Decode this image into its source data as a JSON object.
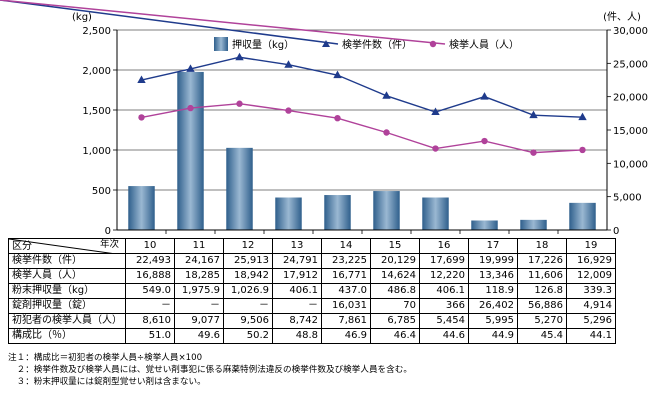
{
  "chart_data": {
    "type": "bar+line",
    "left_unit": "(kg)",
    "right_unit": "(件、人)",
    "left_ticks": [
      "0",
      "500",
      "1,000",
      "1,500",
      "2,000",
      "2,500"
    ],
    "right_ticks": [
      "0",
      "5,000",
      "10,000",
      "15,000",
      "20,000",
      "25,000",
      "30,000"
    ],
    "ylim_left": [
      0,
      2500
    ],
    "ylim_right": [
      0,
      30000
    ],
    "categories": [
      "10",
      "11",
      "12",
      "13",
      "14",
      "15",
      "16",
      "17",
      "18",
      "19"
    ],
    "bar_series": {
      "name": "押収量（kg）",
      "color": "#4f7fa8",
      "values": [
        549.0,
        1975.9,
        1026.9,
        406.1,
        437.0,
        486.8,
        406.1,
        118.9,
        126.8,
        339.3
      ]
    },
    "line_series": [
      {
        "name": "検挙件数（件）",
        "color": "#1f3b8c",
        "marker": "triangle",
        "values": [
          22493,
          24167,
          25913,
          24791,
          23225,
          20129,
          17699,
          19999,
          17226,
          16929
        ]
      },
      {
        "name": "検挙人員（人）",
        "color": "#b0429a",
        "marker": "circle",
        "values": [
          16888,
          18285,
          18942,
          17912,
          16771,
          14624,
          12220,
          13346,
          11606,
          12009
        ]
      }
    ],
    "legend": "top"
  },
  "table": {
    "corner_a": "区分",
    "corner_b": "年次",
    "rows": [
      {
        "label": "検挙件数（件）",
        "values": [
          "22,493",
          "24,167",
          "25,913",
          "24,791",
          "23,225",
          "20,129",
          "17,699",
          "19,999",
          "17,226",
          "16,929"
        ]
      },
      {
        "label": "検挙人員（人）",
        "values": [
          "16,888",
          "18,285",
          "18,942",
          "17,912",
          "16,771",
          "14,624",
          "12,220",
          "13,346",
          "11,606",
          "12,009"
        ]
      },
      {
        "label": "粉末押収量（kg）",
        "values": [
          "549.0",
          "1,975.9",
          "1,026.9",
          "406.1",
          "437.0",
          "486.8",
          "406.1",
          "118.9",
          "126.8",
          "339.3"
        ]
      },
      {
        "label": "錠剤押収量（錠）",
        "values": [
          "－",
          "－",
          "－",
          "－",
          "16,031",
          "70",
          "366",
          "26,402",
          "56,886",
          "4,914"
        ]
      },
      {
        "label": "初犯者の検挙人員（人）",
        "values": [
          "8,610",
          "9,077",
          "9,506",
          "8,742",
          "7,861",
          "6,785",
          "5,454",
          "5,995",
          "5,270",
          "5,296"
        ]
      },
      {
        "label": "構成比（％）",
        "values": [
          "51.0",
          "49.6",
          "50.2",
          "48.8",
          "46.9",
          "46.4",
          "44.6",
          "44.9",
          "45.4",
          "44.1"
        ]
      }
    ]
  },
  "notes": [
    "注１：構成比＝初犯者の検挙人員÷検挙人員×100",
    "　２：検挙件数及び検挙人員には、覚せい剤事犯に係る麻薬特例法違反の検挙件数及び検挙人員を含む。",
    "　３：粉末押収量には錠剤型覚せい剤は含まない。"
  ]
}
